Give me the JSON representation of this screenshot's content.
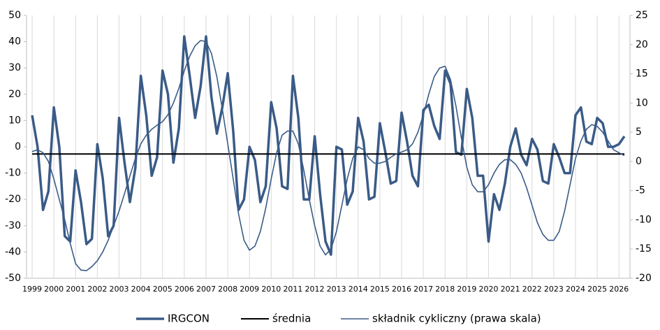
{
  "chart_data": {
    "type": "line",
    "categories": [
      "1999",
      null,
      null,
      null,
      "2000",
      null,
      null,
      null,
      "2001",
      null,
      null,
      null,
      "2002",
      null,
      null,
      null,
      "2003",
      null,
      null,
      null,
      "2004",
      null,
      null,
      null,
      "2005",
      null,
      null,
      null,
      "2006",
      null,
      null,
      null,
      "2007",
      null,
      null,
      null,
      "2008",
      null,
      null,
      null,
      "2009",
      null,
      null,
      null,
      "2010",
      null,
      null,
      null,
      "2011",
      null,
      null,
      null,
      "2012",
      null,
      null,
      null,
      "2013",
      null,
      null,
      null,
      "2014",
      null,
      null,
      null,
      "2015",
      null,
      null,
      null,
      "2016",
      null,
      null,
      null,
      "2017",
      null,
      null,
      null,
      "2018",
      null,
      null,
      null,
      "2019",
      null,
      null,
      null,
      "2020",
      null,
      null,
      null,
      "2021",
      null,
      null,
      null,
      "2022",
      null,
      null,
      null,
      "2023",
      null,
      null,
      null,
      "2024",
      null,
      null,
      null,
      "2025",
      null,
      null,
      null,
      "2026",
      null
    ],
    "series": [
      {
        "name": "IRGCON",
        "color": "#3a5b87",
        "width": 3.5,
        "values": [
          12,
          0,
          -24,
          -17,
          15,
          0,
          -34,
          -36,
          -9,
          -21,
          -37,
          -35,
          1,
          -12,
          -34,
          -30,
          11,
          -6,
          -21,
          -8,
          27,
          12,
          -11,
          -4,
          29,
          20,
          -6,
          7,
          42,
          27,
          11,
          23,
          42,
          19,
          5,
          15,
          28,
          6,
          -24,
          -20,
          0,
          -5,
          -21,
          -15,
          17,
          7,
          -15,
          -16,
          27,
          11,
          -20,
          -20,
          4,
          -18,
          -36,
          -41,
          0,
          -1,
          -22,
          -17,
          11,
          2,
          -20,
          -19,
          9,
          -2,
          -14,
          -13,
          13,
          2,
          -11,
          -15,
          14,
          16,
          8,
          3,
          29,
          24,
          -2,
          -3,
          22,
          11,
          -11,
          -11,
          -36,
          -18,
          -24,
          -14,
          0,
          7,
          -3,
          -7,
          3,
          -1,
          -13,
          -14,
          1,
          -4,
          -10,
          -10,
          12,
          15,
          2,
          1,
          11,
          9,
          0,
          0,
          1,
          4
        ]
      },
      {
        "name": "średnia",
        "color": "#000000",
        "width": 2,
        "values": [
          -2.7,
          -2.7,
          -2.7,
          -2.7,
          -2.7,
          -2.7,
          -2.7,
          -2.7,
          -2.7,
          -2.7,
          -2.7,
          -2.7,
          -2.7,
          -2.7,
          -2.7,
          -2.7,
          -2.7,
          -2.7,
          -2.7,
          -2.7,
          -2.7,
          -2.7,
          -2.7,
          -2.7,
          -2.7,
          -2.7,
          -2.7,
          -2.7,
          -2.7,
          -2.7,
          -2.7,
          -2.7,
          -2.7,
          -2.7,
          -2.7,
          -2.7,
          -2.7,
          -2.7,
          -2.7,
          -2.7,
          -2.7,
          -2.7,
          -2.7,
          -2.7,
          -2.7,
          -2.7,
          -2.7,
          -2.7,
          -2.7,
          -2.7,
          -2.7,
          -2.7,
          -2.7,
          -2.7,
          -2.7,
          -2.7,
          -2.7,
          -2.7,
          -2.7,
          -2.7,
          -2.7,
          -2.7,
          -2.7,
          -2.7,
          -2.7,
          -2.7,
          -2.7,
          -2.7,
          -2.7,
          -2.7,
          -2.7,
          -2.7,
          -2.7,
          -2.7,
          -2.7,
          -2.7,
          -2.7,
          -2.7,
          -2.7,
          -2.7,
          -2.7,
          -2.7,
          -2.7,
          -2.7,
          -2.7,
          -2.7,
          -2.7,
          -2.7,
          -2.7,
          -2.7,
          -2.7,
          -2.7,
          -2.7,
          -2.7,
          -2.7,
          -2.7,
          -2.7,
          -2.7,
          -2.7,
          -2.7,
          -2.7,
          -2.7,
          -2.7,
          -2.7,
          -2.7,
          -2.7,
          -2.7,
          -2.7,
          -2.7,
          -2.7
        ]
      },
      {
        "name": "składnik cykliczny (prawa skala)",
        "color": "#3a5b87",
        "width": 1.6,
        "axis": "y2",
        "values": [
          1.7,
          2,
          1.5,
          0,
          -3,
          -6.5,
          -10,
          -14,
          -17.5,
          -18.6,
          -18.7,
          -18,
          -17,
          -15.5,
          -13.5,
          -11,
          -8.5,
          -5.5,
          -2.5,
          0.5,
          3,
          4.5,
          5.5,
          6.2,
          6.8,
          8,
          10,
          12.5,
          15.5,
          18,
          19.8,
          20.7,
          20.5,
          18.5,
          14.5,
          9,
          3,
          -3,
          -9,
          -13.5,
          -15.2,
          -14.5,
          -12,
          -8,
          -3,
          1.5,
          4.5,
          5.2,
          5.2,
          3,
          -1.5,
          -6.5,
          -11,
          -14.5,
          -16,
          -15,
          -12,
          -7.5,
          -3,
          0.5,
          2.5,
          2,
          0.5,
          -0.3,
          -0.3,
          0,
          0.7,
          1.3,
          1.6,
          2,
          3,
          5,
          8,
          11.5,
          14.5,
          16,
          16.3,
          14,
          9.5,
          4,
          -1,
          -4,
          -5.2,
          -5.2,
          -4,
          -2,
          -0.5,
          0.3,
          0.3,
          -0.5,
          -2,
          -4.5,
          -7.5,
          -10.5,
          -12.5,
          -13.5,
          -13.5,
          -12,
          -8.5,
          -4,
          0.5,
          3.5,
          5.5,
          6.3,
          6,
          5,
          3.5,
          2,
          1.5,
          1
        ]
      }
    ],
    "ylim": [
      -50,
      50
    ],
    "yticks": [
      -50,
      -40,
      -30,
      -20,
      -10,
      0,
      10,
      20,
      30,
      40,
      50
    ],
    "y2lim": [
      -20,
      25
    ],
    "y2ticks": [
      -20,
      -15,
      -10,
      -5,
      0,
      5,
      10,
      15,
      20,
      25
    ],
    "grid": "x",
    "legend": "bottom"
  }
}
